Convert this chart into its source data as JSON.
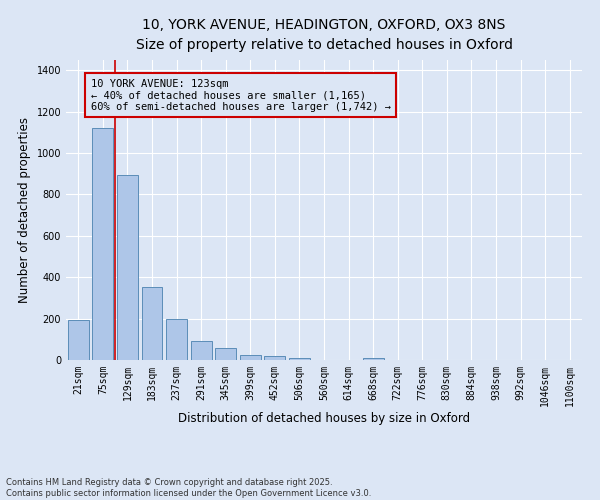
{
  "title_line1": "10, YORK AVENUE, HEADINGTON, OXFORD, OX3 8NS",
  "title_line2": "Size of property relative to detached houses in Oxford",
  "xlabel": "Distribution of detached houses by size in Oxford",
  "ylabel": "Number of detached properties",
  "categories": [
    "21sqm",
    "75sqm",
    "129sqm",
    "183sqm",
    "237sqm",
    "291sqm",
    "345sqm",
    "399sqm",
    "452sqm",
    "506sqm",
    "560sqm",
    "614sqm",
    "668sqm",
    "722sqm",
    "776sqm",
    "830sqm",
    "884sqm",
    "938sqm",
    "992sqm",
    "1046sqm",
    "1100sqm"
  ],
  "values": [
    195,
    1120,
    895,
    355,
    198,
    93,
    58,
    23,
    18,
    12,
    0,
    0,
    12,
    0,
    0,
    0,
    0,
    0,
    0,
    0,
    0
  ],
  "bar_color": "#aec6e8",
  "bar_edge_color": "#5b8db8",
  "background_color": "#dce6f5",
  "vline_color": "#cc0000",
  "annotation_text": "10 YORK AVENUE: 123sqm\n← 40% of detached houses are smaller (1,165)\n60% of semi-detached houses are larger (1,742) →",
  "annotation_box_color": "#cc0000",
  "ylim": [
    0,
    1450
  ],
  "yticks": [
    0,
    200,
    400,
    600,
    800,
    1000,
    1200,
    1400
  ],
  "footer_line1": "Contains HM Land Registry data © Crown copyright and database right 2025.",
  "footer_line2": "Contains public sector information licensed under the Open Government Licence v3.0.",
  "title_fontsize": 10,
  "axis_label_fontsize": 8.5,
  "tick_fontsize": 7,
  "annotation_fontsize": 7.5
}
